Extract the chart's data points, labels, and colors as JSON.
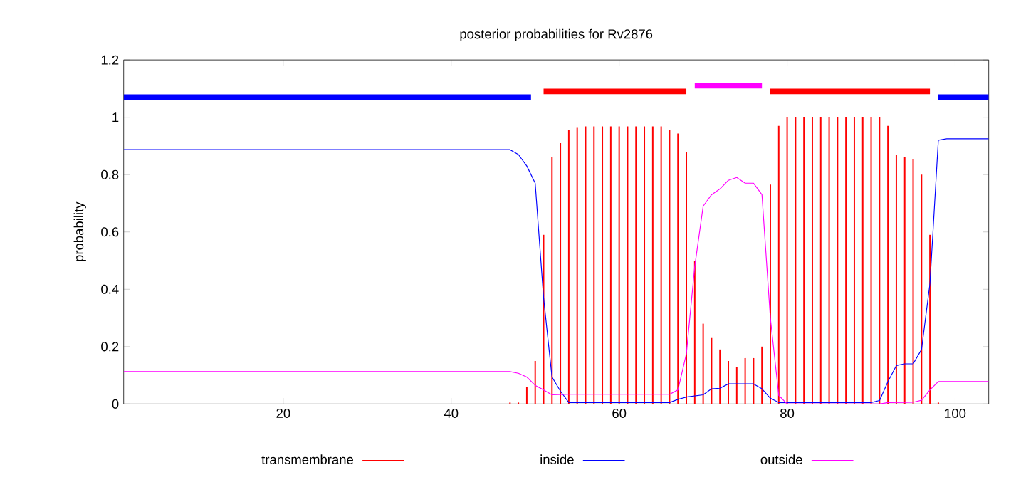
{
  "chart_data": {
    "type": "line",
    "title": "posterior probabilities for Rv2876",
    "ylabel": "probability",
    "xlim": [
      1,
      104
    ],
    "ylim": [
      0,
      1.2
    ],
    "xticks": [
      20,
      40,
      60,
      80,
      100
    ],
    "yticks": [
      0,
      0.2,
      0.4,
      0.6,
      0.8,
      1,
      1.2
    ],
    "legend": "bottom",
    "marker": "none",
    "line_style": "solid",
    "series": [
      {
        "name": "transmembrane",
        "type": "bar",
        "color": "#ff0000",
        "x": [
          47,
          48,
          49,
          50,
          51,
          52,
          53,
          54,
          55,
          56,
          57,
          58,
          59,
          60,
          61,
          62,
          63,
          64,
          65,
          66,
          67,
          68,
          69,
          70,
          71,
          72,
          73,
          74,
          75,
          76,
          77,
          78,
          79,
          80,
          81,
          82,
          83,
          84,
          85,
          86,
          87,
          88,
          89,
          90,
          91,
          92,
          93,
          94,
          95,
          96,
          97,
          98
        ],
        "values": [
          0.005,
          0.005,
          0.06,
          0.15,
          0.59,
          0.86,
          0.91,
          0.955,
          0.963,
          0.968,
          0.968,
          0.968,
          0.968,
          0.968,
          0.968,
          0.968,
          0.968,
          0.968,
          0.968,
          0.955,
          0.943,
          0.88,
          0.5,
          0.28,
          0.23,
          0.19,
          0.15,
          0.13,
          0.16,
          0.16,
          0.2,
          0.765,
          0.97,
          1,
          1,
          1,
          1,
          1,
          1,
          1,
          1,
          1,
          1,
          1,
          1,
          0.97,
          0.87,
          0.86,
          0.855,
          0.8,
          0.59,
          0.005
        ]
      },
      {
        "name": "inside",
        "color": "#0000ff",
        "x": [
          1,
          47,
          48,
          49,
          50,
          51,
          52,
          53,
          54,
          66,
          67,
          68,
          70,
          71,
          72,
          73,
          76,
          77,
          78,
          79,
          90,
          91,
          92,
          93,
          94,
          95,
          96,
          97,
          98,
          99,
          104
        ],
        "values": [
          0.887,
          0.887,
          0.87,
          0.83,
          0.77,
          0.37,
          0.094,
          0.045,
          0.005,
          0.005,
          0.016,
          0.024,
          0.032,
          0.053,
          0.055,
          0.07,
          0.07,
          0.053,
          0.02,
          0.005,
          0.005,
          0.012,
          0.078,
          0.134,
          0.14,
          0.14,
          0.19,
          0.42,
          0.92,
          0.925,
          0.925
        ]
      },
      {
        "name": "outside",
        "color": "#ff00ff",
        "x": [
          1,
          47,
          48,
          49,
          50,
          51,
          52,
          54,
          66,
          67,
          68,
          69,
          70,
          71,
          72,
          73,
          74,
          75,
          76,
          77,
          78,
          79,
          80,
          91,
          92,
          95,
          96,
          97,
          98,
          104
        ],
        "values": [
          0.113,
          0.113,
          0.107,
          0.094,
          0.065,
          0.049,
          0.032,
          0.034,
          0.034,
          0.049,
          0.175,
          0.48,
          0.69,
          0.73,
          0.75,
          0.78,
          0.79,
          0.77,
          0.77,
          0.73,
          0.3,
          0.03,
          0,
          0,
          0.005,
          0.006,
          0.013,
          0.049,
          0.078,
          0.078
        ]
      },
      {
        "color": "#0000ff",
        "x": [
          1,
          49.5,
          50,
          98,
          104
        ],
        "values": [
          1.07,
          1.07,
          null,
          1.07,
          1.07
        ]
      },
      {
        "color": "#ff0000",
        "x": [
          51,
          68,
          68.5,
          78,
          97
        ],
        "values": [
          1.09,
          1.09,
          null,
          1.09,
          1.09
        ]
      },
      {
        "color": "#ff00ff",
        "x": [
          69,
          77
        ],
        "values": [
          1.11,
          1.11
        ]
      }
    ]
  }
}
